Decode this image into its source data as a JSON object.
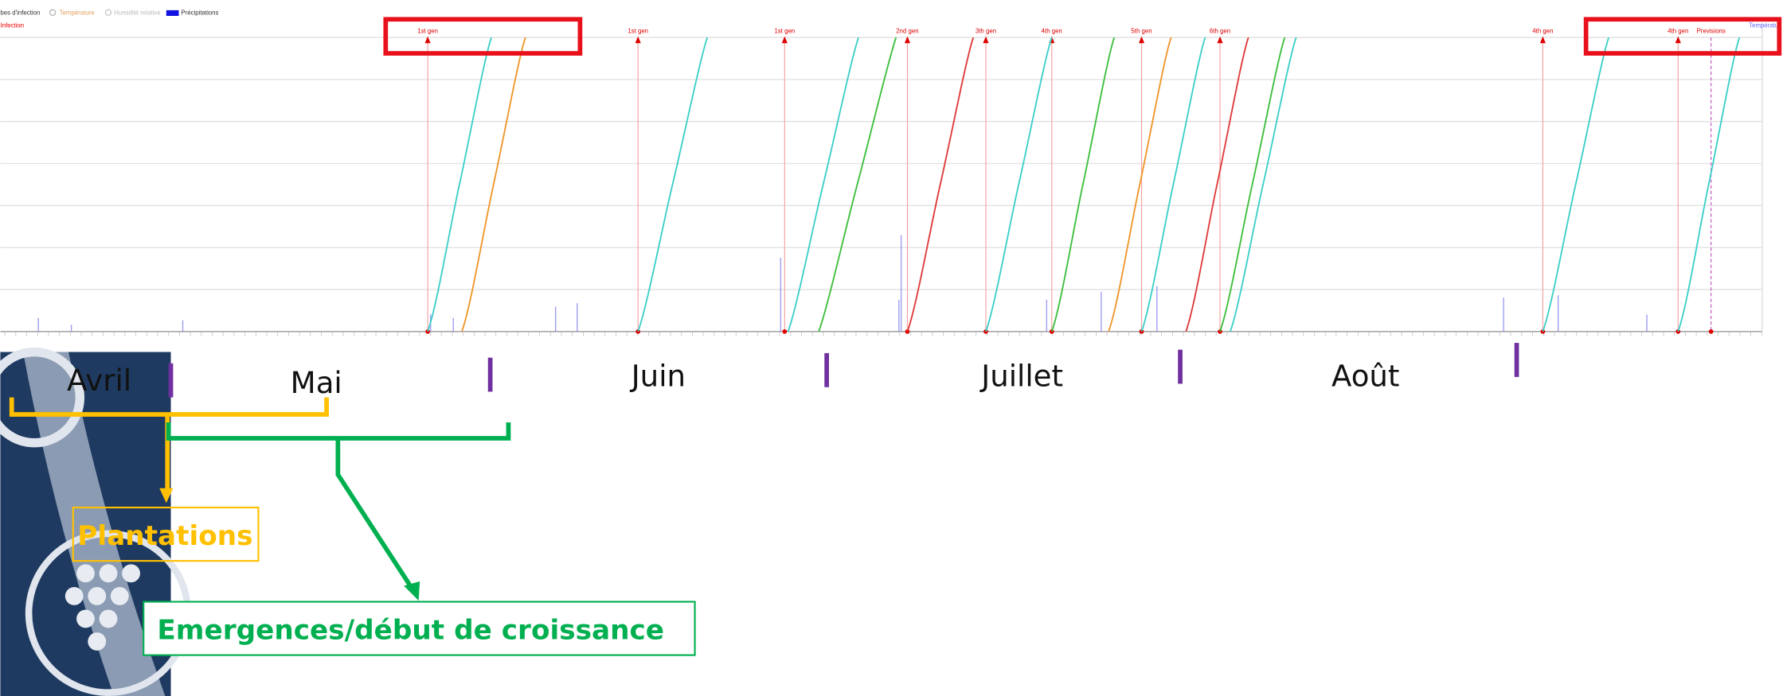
{
  "legend": {
    "items": [
      "bes d'infection",
      "Température",
      "Humidité relative",
      "Précipitations"
    ],
    "infection": "Infection",
    "right": "Températur"
  },
  "generations": [
    "1st gen",
    "1st gen",
    "1st gen",
    "2nd gen",
    "3th gen",
    "4th gen",
    "5th gen",
    "6th gen",
    "4th gen",
    "4th gen"
  ],
  "forecast": "Previsions",
  "months": [
    "Avril",
    "Mai",
    "Juin",
    "Juillet",
    "Août"
  ],
  "annotations": {
    "plantations": "Plantations",
    "emergences": "Emergences/début de croissance"
  }
}
